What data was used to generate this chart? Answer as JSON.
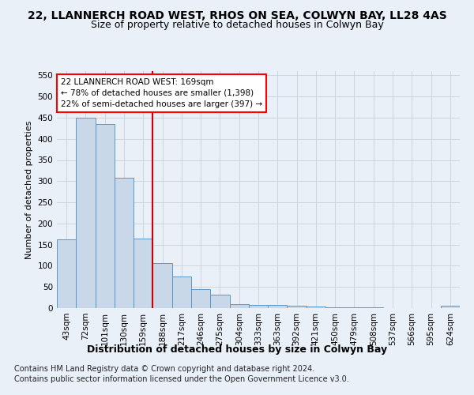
{
  "title1": "22, LLANNERCH ROAD WEST, RHOS ON SEA, COLWYN BAY, LL28 4AS",
  "title2": "Size of property relative to detached houses in Colwyn Bay",
  "xlabel": "Distribution of detached houses by size in Colwyn Bay",
  "ylabel": "Number of detached properties",
  "footer1": "Contains HM Land Registry data © Crown copyright and database right 2024.",
  "footer2": "Contains public sector information licensed under the Open Government Licence v3.0.",
  "categories": [
    "43sqm",
    "72sqm",
    "101sqm",
    "130sqm",
    "159sqm",
    "188sqm",
    "217sqm",
    "246sqm",
    "275sqm",
    "304sqm",
    "333sqm",
    "363sqm",
    "392sqm",
    "421sqm",
    "450sqm",
    "479sqm",
    "508sqm",
    "537sqm",
    "566sqm",
    "595sqm",
    "624sqm"
  ],
  "values": [
    163,
    450,
    435,
    308,
    165,
    106,
    74,
    44,
    32,
    10,
    8,
    8,
    5,
    4,
    1,
    1,
    1,
    0,
    0,
    0,
    5
  ],
  "bar_color": "#c8d8e8",
  "bar_edge_color": "#5a96c8",
  "grid_color": "#c8d0dc",
  "annotation_box_text": "22 LLANNERCH ROAD WEST: 169sqm\n← 78% of detached houses are smaller (1,398)\n22% of semi-detached houses are larger (397) →",
  "vline_color": "#cc0000",
  "vline_x_index": 4,
  "ylim": [
    0,
    560
  ],
  "yticks": [
    0,
    50,
    100,
    150,
    200,
    250,
    300,
    350,
    400,
    450,
    500,
    550
  ],
  "background_color": "#eaf0f8",
  "title1_fontsize": 10,
  "title2_fontsize": 9,
  "xlabel_fontsize": 9,
  "ylabel_fontsize": 8,
  "tick_fontsize": 7.5,
  "footer_fontsize": 7
}
